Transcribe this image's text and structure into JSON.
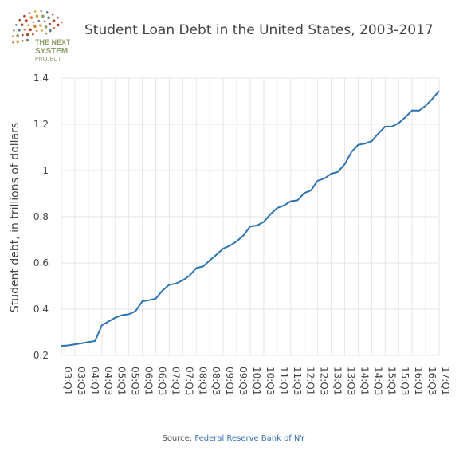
{
  "logo": {
    "line1": "THE NEXT",
    "line2": "SYSTEM",
    "line3": "PROJECT"
  },
  "source": {
    "label": "Source:",
    "link_text": "Federal Reserve Bank of NY"
  },
  "chart_data": {
    "type": "line",
    "title": "Student Loan Debt in the United States, 2003-2017",
    "xlabel": "",
    "ylabel": "Student debt, in trillions of dollars",
    "ylim": [
      0.2,
      1.4
    ],
    "yticks": [
      0.2,
      0.4,
      0.6,
      0.8,
      1,
      1.2,
      1.4
    ],
    "ytick_labels": [
      "0.2",
      "0.4",
      "0.6",
      "0.8",
      "1",
      "1.2",
      "1.4"
    ],
    "xtick_labels": [
      "03:Q1",
      "03:Q3",
      "04:Q1",
      "04:Q3",
      "05:Q1",
      "05:Q3",
      "06:Q1",
      "06:Q3",
      "07:Q1",
      "07:Q3",
      "08:Q1",
      "08:Q3",
      "09:Q1",
      "09:Q3",
      "10:Q1",
      "10:Q3",
      "11:Q1",
      "11:Q3",
      "12:Q1",
      "12:Q3",
      "13:Q1",
      "13:Q3",
      "14:Q1",
      "14:Q3",
      "15:Q1",
      "15:Q3",
      "16:Q1",
      "16:Q3",
      "17:Q1"
    ],
    "grid": true,
    "line_color": "#2c74b3",
    "series": [
      {
        "values": [
          0.241,
          0.243,
          0.248,
          0.252,
          0.258,
          0.262,
          0.33,
          0.347,
          0.363,
          0.374,
          0.378,
          0.391,
          0.434,
          0.439,
          0.446,
          0.481,
          0.506,
          0.511,
          0.525,
          0.545,
          0.578,
          0.585,
          0.611,
          0.636,
          0.662,
          0.675,
          0.694,
          0.719,
          0.758,
          0.762,
          0.778,
          0.811,
          0.838,
          0.849,
          0.867,
          0.871,
          0.902,
          0.914,
          0.956,
          0.966,
          0.986,
          0.994,
          1.027,
          1.08,
          1.111,
          1.117,
          1.127,
          1.16,
          1.19,
          1.19,
          1.205,
          1.231,
          1.26,
          1.259,
          1.28,
          1.31,
          1.344
        ]
      }
    ]
  }
}
